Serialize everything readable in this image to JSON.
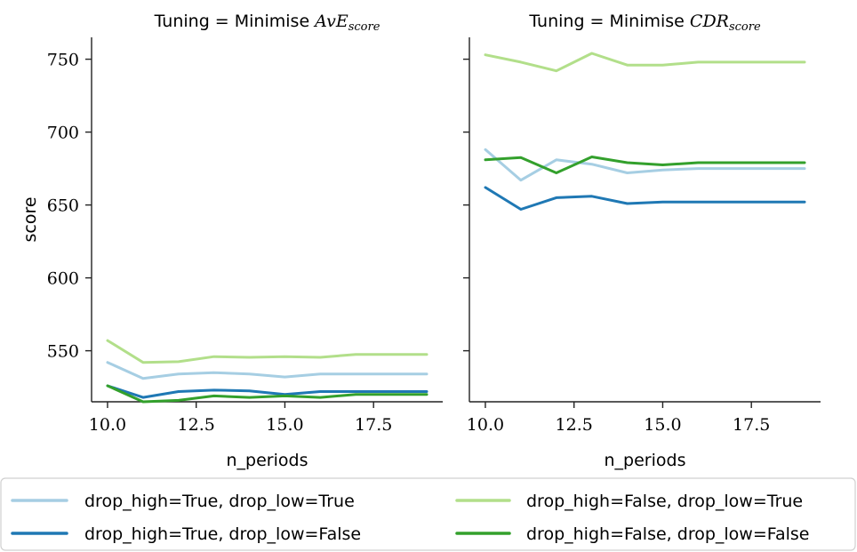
{
  "colors": {
    "light_blue": "#a6cee3",
    "dark_blue": "#1f78b4",
    "light_green": "#b2df8a",
    "dark_green": "#33a02c"
  },
  "chart_data": [
    {
      "type": "line",
      "title_prefix": "Tuning = Minimise ",
      "title_math": "AvE",
      "title_sub": "score",
      "xlabel": "n_periods",
      "ylabel": "score",
      "xlim": [
        9.55,
        19.45
      ],
      "ylim": [
        515,
        765
      ],
      "xticks": [
        "10.0",
        "12.5",
        "15.0",
        "17.5"
      ],
      "yticks": [
        "550",
        "600",
        "650",
        "700",
        "750"
      ],
      "grid": false,
      "x": [
        10,
        11,
        12,
        13,
        14,
        15,
        16,
        17,
        18,
        19
      ],
      "series": [
        {
          "name": "drop_high=True, drop_low=True",
          "color": "#a6cee3",
          "values": [
            542,
            531,
            534,
            535,
            534,
            532,
            534,
            534,
            534,
            534
          ]
        },
        {
          "name": "drop_high=True, drop_low=False",
          "color": "#1f78b4",
          "values": [
            526,
            518,
            522,
            523,
            522.5,
            520,
            522,
            522,
            522,
            522
          ]
        },
        {
          "name": "drop_high=False, drop_low=True",
          "color": "#b2df8a",
          "values": [
            557,
            542,
            542.5,
            546,
            545.5,
            546,
            545.5,
            547.5,
            547.5,
            547.5
          ]
        },
        {
          "name": "drop_high=False, drop_low=False",
          "color": "#33a02c",
          "values": [
            526,
            515,
            516,
            519,
            518,
            519,
            518,
            520,
            520,
            520
          ]
        }
      ]
    },
    {
      "type": "line",
      "title_prefix": "Tuning = Minimise ",
      "title_math": "CDR",
      "title_sub": "score",
      "xlabel": "n_periods",
      "ylabel": "",
      "xlim": [
        9.55,
        19.45
      ],
      "ylim": [
        515,
        765
      ],
      "xticks": [
        "10.0",
        "12.5",
        "15.0",
        "17.5"
      ],
      "yticks": [],
      "grid": false,
      "x": [
        10,
        11,
        12,
        13,
        14,
        15,
        16,
        17,
        18,
        19
      ],
      "series": [
        {
          "name": "drop_high=True, drop_low=True",
          "color": "#a6cee3",
          "values": [
            688,
            667,
            681,
            678,
            672,
            674,
            675,
            675,
            675,
            675
          ]
        },
        {
          "name": "drop_high=True, drop_low=False",
          "color": "#1f78b4",
          "values": [
            662,
            647,
            655,
            656,
            651,
            652,
            652,
            652,
            652,
            652
          ]
        },
        {
          "name": "drop_high=False, drop_low=True",
          "color": "#b2df8a",
          "values": [
            753,
            748,
            742,
            754,
            746,
            746,
            748,
            748,
            748,
            748
          ]
        },
        {
          "name": "drop_high=False, drop_low=False",
          "color": "#33a02c",
          "values": [
            681,
            682.5,
            672,
            683,
            679,
            677.5,
            679,
            679,
            679,
            679
          ]
        }
      ]
    }
  ],
  "legend": {
    "placement": "bottom",
    "entries": [
      {
        "label": "drop_high=True, drop_low=True",
        "color": "#a6cee3"
      },
      {
        "label": "drop_high=False, drop_low=True",
        "color": "#b2df8a"
      },
      {
        "label": "drop_high=True, drop_low=False",
        "color": "#1f78b4"
      },
      {
        "label": "drop_high=False, drop_low=False",
        "color": "#33a02c"
      }
    ]
  }
}
